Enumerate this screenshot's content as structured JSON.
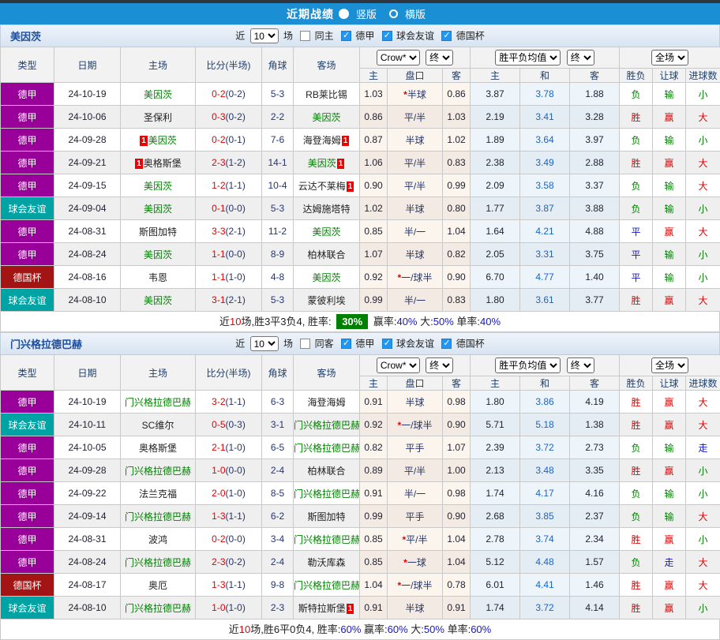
{
  "topbar": {
    "title": "近期战绩",
    "radio_vertical": "竖版",
    "radio_horizontal": "横版"
  },
  "filter": {
    "near_label": "近",
    "games_value": "10",
    "games_label": "场",
    "league_label": "德甲",
    "friendly_label": "球会友谊",
    "cup_label": "德国杯"
  },
  "headers": {
    "type": "类型",
    "date": "日期",
    "home": "主场",
    "score": "比分(半场)",
    "corner": "角球",
    "away": "客场",
    "odds_home": "主",
    "odds_handicap": "盘口",
    "odds_away": "客",
    "avg_home": "主",
    "avg_draw": "和",
    "avg_away": "客",
    "result": "胜负",
    "handicap_result": "让球",
    "goals": "进球数",
    "bookmaker_select": "Crow*",
    "final_select": "终",
    "avg_select": "胜平负均值",
    "avg_final_select": "终",
    "fulltime_select": "全场"
  },
  "sections": [
    {
      "team": "美因茨",
      "same_label": "同主",
      "rows": [
        {
          "type": "德甲",
          "type_class": "league",
          "date": "24-10-19",
          "home": "美因茨",
          "home_green": true,
          "home_card": false,
          "score_ft": "0-2",
          "score_ht": "(0-2)",
          "corners": "5-3",
          "away": "RB莱比锡",
          "away_green": false,
          "away_card": false,
          "odds_home": "1.03",
          "handicap": "半球",
          "handicap_star": true,
          "odds_away": "0.86",
          "avg_home": "3.87",
          "avg_draw": "3.78",
          "avg_away": "1.88",
          "result": "负",
          "result_color": "green",
          "handicap_result": "输",
          "handicap_color": "green",
          "goals_result": "小",
          "goals_color": "green"
        },
        {
          "type": "德甲",
          "type_class": "league",
          "date": "24-10-06",
          "home": "圣保利",
          "home_green": false,
          "home_card": false,
          "score_ft": "0-3",
          "score_ht": "(0-2)",
          "corners": "2-2",
          "away": "美因茨",
          "away_green": true,
          "away_card": false,
          "odds_home": "0.86",
          "handicap": "平/半",
          "handicap_star": false,
          "odds_away": "1.03",
          "avg_home": "2.19",
          "avg_draw": "3.41",
          "avg_away": "3.28",
          "result": "胜",
          "result_color": "red",
          "handicap_result": "赢",
          "handicap_color": "red",
          "goals_result": "大",
          "goals_color": "red"
        },
        {
          "type": "德甲",
          "type_class": "league",
          "date": "24-09-28",
          "home": "美因茨",
          "home_green": true,
          "home_card": true,
          "score_ft": "0-2",
          "score_ht": "(0-1)",
          "corners": "7-6",
          "away": "海登海姆",
          "away_green": false,
          "away_card": true,
          "odds_home": "0.87",
          "handicap": "半球",
          "handicap_star": false,
          "odds_away": "1.02",
          "avg_home": "1.89",
          "avg_draw": "3.64",
          "avg_away": "3.97",
          "result": "负",
          "result_color": "green",
          "handicap_result": "输",
          "handicap_color": "green",
          "goals_result": "小",
          "goals_color": "green"
        },
        {
          "type": "德甲",
          "type_class": "league",
          "date": "24-09-21",
          "home": "奥格斯堡",
          "home_green": false,
          "home_card": true,
          "score_ft": "2-3",
          "score_ht": "(1-2)",
          "corners": "14-1",
          "away": "美因茨",
          "away_green": true,
          "away_card": true,
          "odds_home": "1.06",
          "handicap": "平/半",
          "handicap_star": false,
          "odds_away": "0.83",
          "avg_home": "2.38",
          "avg_draw": "3.49",
          "avg_away": "2.88",
          "result": "胜",
          "result_color": "red",
          "handicap_result": "赢",
          "handicap_color": "red",
          "goals_result": "大",
          "goals_color": "red"
        },
        {
          "type": "德甲",
          "type_class": "league",
          "date": "24-09-15",
          "home": "美因茨",
          "home_green": true,
          "home_card": false,
          "score_ft": "1-2",
          "score_ht": "(1-1)",
          "corners": "10-4",
          "away": "云达不莱梅",
          "away_green": false,
          "away_card": true,
          "odds_home": "0.90",
          "handicap": "平/半",
          "handicap_star": false,
          "odds_away": "0.99",
          "avg_home": "2.09",
          "avg_draw": "3.58",
          "avg_away": "3.37",
          "result": "负",
          "result_color": "green",
          "handicap_result": "输",
          "handicap_color": "green",
          "goals_result": "大",
          "goals_color": "red"
        },
        {
          "type": "球会友谊",
          "type_class": "friendly",
          "date": "24-09-04",
          "home": "美因茨",
          "home_green": true,
          "home_card": false,
          "score_ft": "0-1",
          "score_ht": "(0-0)",
          "corners": "5-3",
          "away": "达姆施塔特",
          "away_green": false,
          "away_card": false,
          "odds_home": "1.02",
          "handicap": "半球",
          "handicap_star": false,
          "odds_away": "0.80",
          "avg_home": "1.77",
          "avg_draw": "3.87",
          "avg_away": "3.88",
          "result": "负",
          "result_color": "green",
          "handicap_result": "输",
          "handicap_color": "green",
          "goals_result": "小",
          "goals_color": "green"
        },
        {
          "type": "德甲",
          "type_class": "league",
          "date": "24-08-31",
          "home": "斯图加特",
          "home_green": false,
          "home_card": false,
          "score_ft": "3-3",
          "score_ht": "(2-1)",
          "corners": "11-2",
          "away": "美因茨",
          "away_green": true,
          "away_card": false,
          "odds_home": "0.85",
          "handicap": "半/一",
          "handicap_star": false,
          "odds_away": "1.04",
          "avg_home": "1.64",
          "avg_draw": "4.21",
          "avg_away": "4.88",
          "result": "平",
          "result_color": "blue",
          "handicap_result": "赢",
          "handicap_color": "red",
          "goals_result": "大",
          "goals_color": "red"
        },
        {
          "type": "德甲",
          "type_class": "league",
          "date": "24-08-24",
          "home": "美因茨",
          "home_green": true,
          "home_card": false,
          "score_ft": "1-1",
          "score_ht": "(0-0)",
          "corners": "8-9",
          "away": "柏林联合",
          "away_green": false,
          "away_card": false,
          "odds_home": "1.07",
          "handicap": "半球",
          "handicap_star": false,
          "odds_away": "0.82",
          "avg_home": "2.05",
          "avg_draw": "3.31",
          "avg_away": "3.75",
          "result": "平",
          "result_color": "blue",
          "handicap_result": "输",
          "handicap_color": "green",
          "goals_result": "小",
          "goals_color": "green"
        },
        {
          "type": "德国杯",
          "type_class": "cup",
          "date": "24-08-16",
          "home": "韦恩",
          "home_green": false,
          "home_card": false,
          "score_ft": "1-1",
          "score_ht": "(1-0)",
          "corners": "4-8",
          "away": "美因茨",
          "away_green": true,
          "away_card": false,
          "odds_home": "0.92",
          "handicap": "一/球半",
          "handicap_star": true,
          "odds_away": "0.90",
          "avg_home": "6.70",
          "avg_draw": "4.77",
          "avg_away": "1.40",
          "result": "平",
          "result_color": "blue",
          "handicap_result": "输",
          "handicap_color": "green",
          "goals_result": "小",
          "goals_color": "green"
        },
        {
          "type": "球会友谊",
          "type_class": "friendly",
          "date": "24-08-10",
          "home": "美因茨",
          "home_green": true,
          "home_card": false,
          "score_ft": "3-1",
          "score_ht": "(2-1)",
          "corners": "5-3",
          "away": "蒙彼利埃",
          "away_green": false,
          "away_card": false,
          "odds_home": "0.99",
          "handicap": "半/一",
          "handicap_star": false,
          "odds_away": "0.83",
          "avg_home": "1.80",
          "avg_draw": "3.61",
          "avg_away": "3.77",
          "result": "胜",
          "result_color": "red",
          "handicap_result": "赢",
          "handicap_color": "red",
          "goals_result": "大",
          "goals_color": "red"
        }
      ],
      "summary_parts": [
        {
          "text": "近"
        },
        {
          "text": "10",
          "c": "red"
        },
        {
          "text": "场,胜3平3负4, 胜率: "
        },
        {
          "text": "30%",
          "c": "hl"
        },
        {
          "text": " 赢率:"
        },
        {
          "text": "40%",
          "c": "blue"
        },
        {
          "text": " 大:"
        },
        {
          "text": "50%",
          "c": "blue"
        },
        {
          "text": " 单率:"
        },
        {
          "text": "40%",
          "c": "blue"
        }
      ]
    },
    {
      "team": "门兴格拉德巴赫",
      "same_label": "同客",
      "rows": [
        {
          "type": "德甲",
          "type_class": "league",
          "date": "24-10-19",
          "home": "门兴格拉德巴赫",
          "home_green": true,
          "home_card": false,
          "score_ft": "3-2",
          "score_ht": "(1-1)",
          "corners": "6-3",
          "away": "海登海姆",
          "away_green": false,
          "away_card": false,
          "odds_home": "0.91",
          "handicap": "半球",
          "handicap_star": false,
          "odds_away": "0.98",
          "avg_home": "1.80",
          "avg_draw": "3.86",
          "avg_away": "4.19",
          "result": "胜",
          "result_color": "red",
          "handicap_result": "赢",
          "handicap_color": "red",
          "goals_result": "大",
          "goals_color": "red"
        },
        {
          "type": "球会友谊",
          "type_class": "friendly",
          "date": "24-10-11",
          "home": "SC维尔",
          "home_green": false,
          "home_card": false,
          "score_ft": "0-5",
          "score_ht": "(0-3)",
          "corners": "3-1",
          "away": "门兴格拉德巴赫",
          "away_green": true,
          "away_card": false,
          "odds_home": "0.92",
          "handicap": "一/球半",
          "handicap_star": true,
          "odds_away": "0.90",
          "avg_home": "5.71",
          "avg_draw": "5.18",
          "avg_away": "1.38",
          "result": "胜",
          "result_color": "red",
          "handicap_result": "赢",
          "handicap_color": "red",
          "goals_result": "大",
          "goals_color": "red"
        },
        {
          "type": "德甲",
          "type_class": "league",
          "date": "24-10-05",
          "home": "奥格斯堡",
          "home_green": false,
          "home_card": false,
          "score_ft": "2-1",
          "score_ht": "(1-0)",
          "corners": "6-5",
          "away": "门兴格拉德巴赫",
          "away_green": true,
          "away_card": false,
          "odds_home": "0.82",
          "handicap": "平手",
          "handicap_star": false,
          "odds_away": "1.07",
          "avg_home": "2.39",
          "avg_draw": "3.72",
          "avg_away": "2.73",
          "result": "负",
          "result_color": "green",
          "handicap_result": "输",
          "handicap_color": "green",
          "goals_result": "走",
          "goals_color": "blue"
        },
        {
          "type": "德甲",
          "type_class": "league",
          "date": "24-09-28",
          "home": "门兴格拉德巴赫",
          "home_green": true,
          "home_card": false,
          "score_ft": "1-0",
          "score_ht": "(0-0)",
          "corners": "2-4",
          "away": "柏林联合",
          "away_green": false,
          "away_card": false,
          "odds_home": "0.89",
          "handicap": "平/半",
          "handicap_star": false,
          "odds_away": "1.00",
          "avg_home": "2.13",
          "avg_draw": "3.48",
          "avg_away": "3.35",
          "result": "胜",
          "result_color": "red",
          "handicap_result": "赢",
          "handicap_color": "red",
          "goals_result": "小",
          "goals_color": "green"
        },
        {
          "type": "德甲",
          "type_class": "league",
          "date": "24-09-22",
          "home": "法兰克福",
          "home_green": false,
          "home_card": false,
          "score_ft": "2-0",
          "score_ht": "(1-0)",
          "corners": "8-5",
          "away": "门兴格拉德巴赫",
          "away_green": true,
          "away_card": false,
          "odds_home": "0.91",
          "handicap": "半/一",
          "handicap_star": false,
          "odds_away": "0.98",
          "avg_home": "1.74",
          "avg_draw": "4.17",
          "avg_away": "4.16",
          "result": "负",
          "result_color": "green",
          "handicap_result": "输",
          "handicap_color": "green",
          "goals_result": "小",
          "goals_color": "green"
        },
        {
          "type": "德甲",
          "type_class": "league",
          "date": "24-09-14",
          "home": "门兴格拉德巴赫",
          "home_green": true,
          "home_card": false,
          "score_ft": "1-3",
          "score_ht": "(1-1)",
          "corners": "6-2",
          "away": "斯图加特",
          "away_green": false,
          "away_card": false,
          "odds_home": "0.99",
          "handicap": "平手",
          "handicap_star": false,
          "odds_away": "0.90",
          "avg_home": "2.68",
          "avg_draw": "3.85",
          "avg_away": "2.37",
          "result": "负",
          "result_color": "green",
          "handicap_result": "输",
          "handicap_color": "green",
          "goals_result": "大",
          "goals_color": "red"
        },
        {
          "type": "德甲",
          "type_class": "league",
          "date": "24-08-31",
          "home": "波鸿",
          "home_green": false,
          "home_card": false,
          "score_ft": "0-2",
          "score_ht": "(0-0)",
          "corners": "3-4",
          "away": "门兴格拉德巴赫",
          "away_green": true,
          "away_card": false,
          "odds_home": "0.85",
          "handicap": "平/半",
          "handicap_star": true,
          "odds_away": "1.04",
          "avg_home": "2.78",
          "avg_draw": "3.74",
          "avg_away": "2.34",
          "result": "胜",
          "result_color": "red",
          "handicap_result": "赢",
          "handicap_color": "red",
          "goals_result": "小",
          "goals_color": "green"
        },
        {
          "type": "德甲",
          "type_class": "league",
          "date": "24-08-24",
          "home": "门兴格拉德巴赫",
          "home_green": true,
          "home_card": false,
          "score_ft": "2-3",
          "score_ht": "(0-2)",
          "corners": "2-4",
          "away": "勒沃库森",
          "away_green": false,
          "away_card": false,
          "odds_home": "0.85",
          "handicap": "一球",
          "handicap_star": true,
          "odds_away": "1.04",
          "avg_home": "5.12",
          "avg_draw": "4.48",
          "avg_away": "1.57",
          "result": "负",
          "result_color": "green",
          "handicap_result": "走",
          "handicap_color": "blue",
          "goals_result": "大",
          "goals_color": "red"
        },
        {
          "type": "德国杯",
          "type_class": "cup",
          "date": "24-08-17",
          "home": "奥厄",
          "home_green": false,
          "home_card": false,
          "score_ft": "1-3",
          "score_ht": "(1-1)",
          "corners": "9-8",
          "away": "门兴格拉德巴赫",
          "away_green": true,
          "away_card": false,
          "odds_home": "1.04",
          "handicap": "一/球半",
          "handicap_star": true,
          "odds_away": "0.78",
          "avg_home": "6.01",
          "avg_draw": "4.41",
          "avg_away": "1.46",
          "result": "胜",
          "result_color": "red",
          "handicap_result": "赢",
          "handicap_color": "red",
          "goals_result": "大",
          "goals_color": "red"
        },
        {
          "type": "球会友谊",
          "type_class": "friendly",
          "date": "24-08-10",
          "home": "门兴格拉德巴赫",
          "home_green": true,
          "home_card": false,
          "score_ft": "1-0",
          "score_ht": "(1-0)",
          "corners": "2-3",
          "away": "斯特拉斯堡",
          "away_green": false,
          "away_card": true,
          "odds_home": "0.91",
          "handicap": "半球",
          "handicap_star": false,
          "odds_away": "0.91",
          "avg_home": "1.74",
          "avg_draw": "3.72",
          "avg_away": "4.14",
          "result": "胜",
          "result_color": "red",
          "handicap_result": "赢",
          "handicap_color": "red",
          "goals_result": "小",
          "goals_color": "green"
        }
      ],
      "summary_parts": [
        {
          "text": "近"
        },
        {
          "text": "10",
          "c": "red"
        },
        {
          "text": "场,胜6平0负4, 胜率:"
        },
        {
          "text": "60%",
          "c": "blue"
        },
        {
          "text": " 赢率:"
        },
        {
          "text": "60%",
          "c": "blue"
        },
        {
          "text": " 大:"
        },
        {
          "text": "50%",
          "c": "blue"
        },
        {
          "text": " 单率:"
        },
        {
          "text": "60%",
          "c": "blue"
        }
      ]
    }
  ],
  "colors": {
    "accent_blue": "#1b8fd4",
    "league_purple": "#990099",
    "friendly_teal": "#00a3a3",
    "cup_red": "#a31414",
    "focus_team_green": "#008000",
    "loss_score_red": "#e60000",
    "highlight_green": "#008000"
  }
}
